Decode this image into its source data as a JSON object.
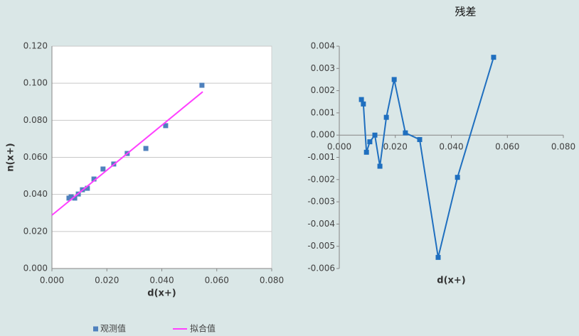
{
  "chart_data": [
    {
      "type": "scatter",
      "x_label": "d(x+)",
      "y_label": "n(x+)",
      "grid": true,
      "plot_background": "#ffffff",
      "legend": "bottom",
      "xlim": [
        0,
        0.08
      ],
      "ylim": [
        0,
        0.12
      ],
      "xticks": [
        {
          "value": 0,
          "label": "0.000"
        },
        {
          "value": 0.02,
          "label": "0.020"
        },
        {
          "value": 0.04,
          "label": "0.040"
        },
        {
          "value": 0.06,
          "label": "0.060"
        },
        {
          "value": 0.08,
          "label": "0.080"
        }
      ],
      "yticks": [
        {
          "value": 0,
          "label": "0.000"
        },
        {
          "value": 0.02,
          "label": "0.020"
        },
        {
          "value": 0.04,
          "label": "0.040"
        },
        {
          "value": 0.06,
          "label": "0.060"
        },
        {
          "value": 0.08,
          "label": "0.080"
        },
        {
          "value": 0.1,
          "label": "0.100"
        },
        {
          "value": 0.12,
          "label": "0.120"
        }
      ],
      "series": [
        {
          "name": "观测值",
          "color": "#4f81bd",
          "style": "markers",
          "x": [
            0.0062,
            0.007,
            0.0083,
            0.0096,
            0.0111,
            0.0129,
            0.0153,
            0.0186,
            0.0225,
            0.0274,
            0.0342,
            0.0414,
            0.0546
          ],
          "values": [
            0.038,
            0.0387,
            0.038,
            0.0402,
            0.0425,
            0.0433,
            0.0483,
            0.0537,
            0.0564,
            0.0621,
            0.0648,
            0.0771,
            0.0989
          ]
        },
        {
          "name": "拟合值",
          "color": "#ff40ff",
          "style": "line",
          "x": [
            0,
            0.0549
          ],
          "values": [
            0.0288,
            0.0954
          ]
        }
      ]
    },
    {
      "type": "line",
      "title": "残差",
      "x_label": "d(x+)",
      "grid": false,
      "x_axis_at_zero": true,
      "xlim": [
        0,
        0.08
      ],
      "ylim": [
        -0.006,
        0.004
      ],
      "xticks": [
        {
          "value": 0,
          "label": "0.000"
        },
        {
          "value": 0.02,
          "label": "0.020"
        },
        {
          "value": 0.04,
          "label": "0.040"
        },
        {
          "value": 0.06,
          "label": "0.060"
        },
        {
          "value": 0.08,
          "label": "0.080"
        }
      ],
      "yticks": [
        {
          "value": -0.006,
          "label": "-0.006"
        },
        {
          "value": -0.005,
          "label": "-0.005"
        },
        {
          "value": -0.004,
          "label": "-0.004"
        },
        {
          "value": -0.003,
          "label": "-0.003"
        },
        {
          "value": -0.002,
          "label": "-0.002"
        },
        {
          "value": -0.001,
          "label": "-0.001"
        },
        {
          "value": 0,
          "label": "0.000"
        },
        {
          "value": 0.001,
          "label": "0.001"
        },
        {
          "value": 0.002,
          "label": "0.002"
        },
        {
          "value": 0.003,
          "label": "0.003"
        },
        {
          "value": 0.004,
          "label": "0.004"
        }
      ],
      "series": [
        {
          "color": "#1f6fbf",
          "style": "line+markers",
          "x": [
            0.0079,
            0.0086,
            0.0097,
            0.0109,
            0.0127,
            0.0145,
            0.0168,
            0.0196,
            0.0236,
            0.0287,
            0.0353,
            0.0422,
            0.0551
          ],
          "values": [
            0.0016,
            0.0014,
            -0.00077,
            -0.0003,
            0.0,
            -0.0014,
            0.0008,
            0.0025,
            0.0001,
            -0.0002,
            -0.0055,
            -0.0019,
            0.0035
          ]
        }
      ]
    }
  ]
}
